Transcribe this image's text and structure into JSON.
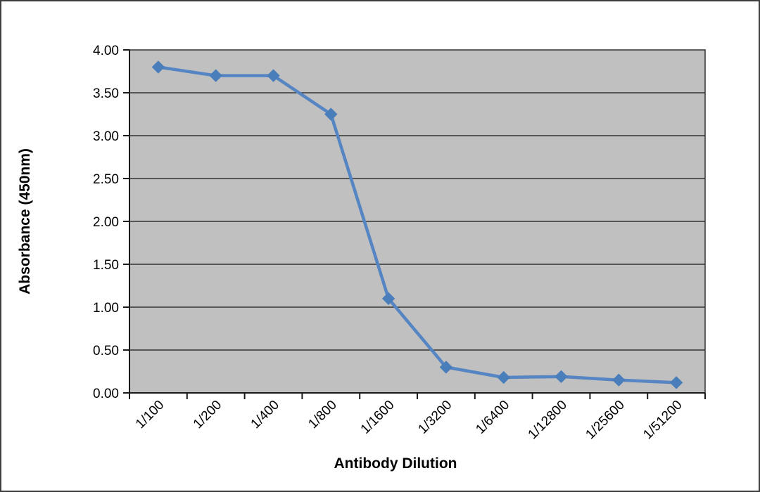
{
  "chart_data": {
    "type": "line",
    "title": "",
    "xlabel": "Antibody Dilution",
    "ylabel": "Absorbance (450nm)",
    "categories": [
      "1/100",
      "1/200",
      "1/400",
      "1/800",
      "1/1600",
      "1/3200",
      "1/6400",
      "1/12800",
      "1/25600",
      "1/51200"
    ],
    "series": [
      {
        "name": "Absorbance (450nm)",
        "values": [
          3.8,
          3.7,
          3.7,
          3.25,
          1.1,
          0.3,
          0.18,
          0.19,
          0.15,
          0.12
        ]
      }
    ],
    "ylim": [
      0,
      4
    ],
    "ytick_step": 0.5,
    "ytick_labels": [
      "0.00",
      "0.50",
      "1.00",
      "1.50",
      "2.00",
      "2.50",
      "3.00",
      "3.50",
      "4.00"
    ],
    "grid": "horizontal",
    "legend_position": "none",
    "marker": "diamond",
    "colors": {
      "line": "#5585c2",
      "marker": "#4a7ebb",
      "plot_bg": "#c0c0c0",
      "gridline": "#333333",
      "axis": "#1a1a1a",
      "tick_text": "#000000",
      "chart_border": "#3e3e3e",
      "background": "#ffffff"
    }
  }
}
